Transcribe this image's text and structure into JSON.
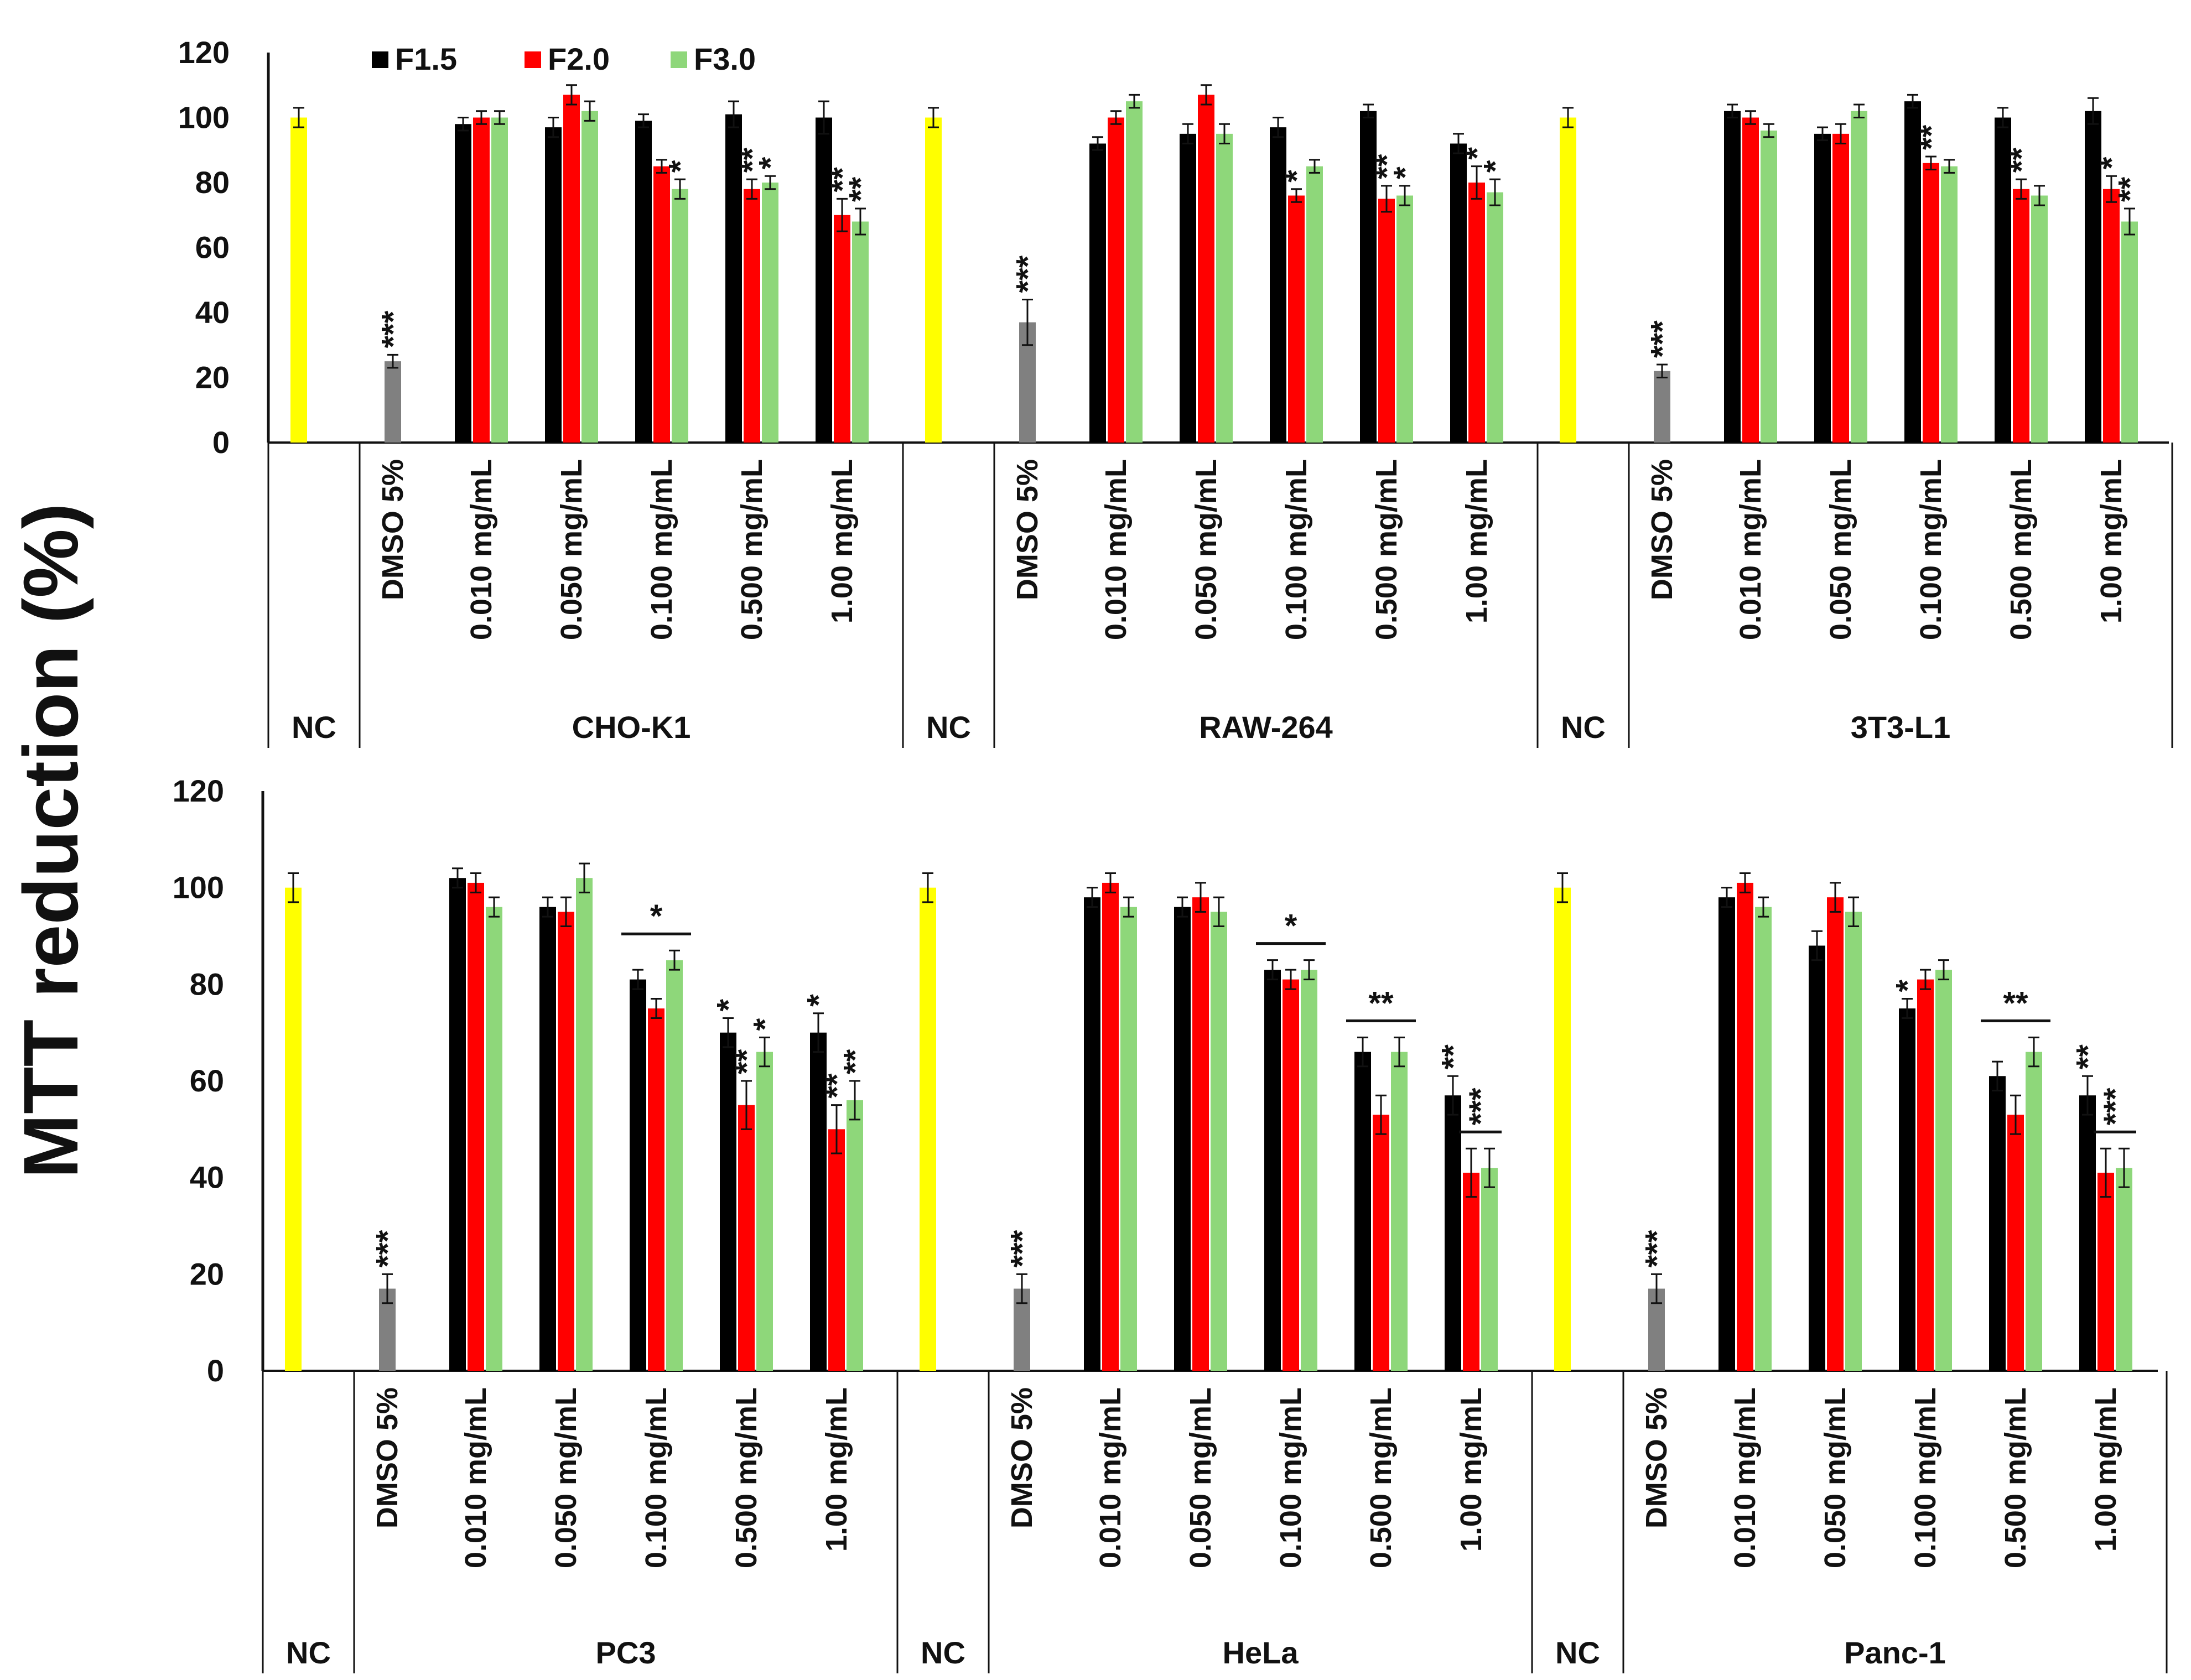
{
  "chart_data": {
    "type": "bar",
    "ylabel": "MTT reduction (%)",
    "ylim": [
      0,
      120
    ],
    "yticks": [
      "0",
      "20",
      "40",
      "60",
      "80",
      "100",
      "120"
    ],
    "grid": false,
    "legend_position": "top-left",
    "colors": {
      "F1.5": "#000000",
      "F2.0": "#ff0000",
      "F3.0": "#8ed77a",
      "NC": "#ffff00",
      "DMSO": "#808080"
    },
    "series_names": [
      "F1.5",
      "F2.0",
      "F3.0"
    ],
    "panels": [
      {
        "groups": [
          {
            "name": "CHO-K1",
            "nc_label": "NC",
            "nc": 100,
            "nc_err": 3,
            "dmso_label": "DMSO 5%",
            "dmso": 25,
            "dmso_err": 2,
            "dmso_star": "***",
            "concentrations": [
              {
                "label": "0.010 mg/mL",
                "values": [
                  98,
                  100,
                  100
                ],
                "errors": [
                  2,
                  2,
                  2
                ],
                "stars": [
                  "",
                  "",
                  ""
                ]
              },
              {
                "label": "0.050 mg/mL",
                "values": [
                  97,
                  107,
                  102
                ],
                "errors": [
                  3,
                  3,
                  3
                ],
                "stars": [
                  "",
                  "",
                  ""
                ]
              },
              {
                "label": "0.100 mg/mL",
                "values": [
                  99,
                  85,
                  78
                ],
                "errors": [
                  2,
                  2,
                  3
                ],
                "stars": [
                  "",
                  "",
                  "*"
                ]
              },
              {
                "label": "0.500 mg/mL",
                "values": [
                  101,
                  78,
                  80
                ],
                "errors": [
                  4,
                  3,
                  2
                ],
                "stars": [
                  "",
                  "**",
                  "*"
                ]
              },
              {
                "label": "1.00 mg/mL",
                "values": [
                  100,
                  70,
                  68
                ],
                "errors": [
                  5,
                  5,
                  4
                ],
                "stars": [
                  "",
                  "**",
                  "**"
                ]
              }
            ]
          },
          {
            "name": "RAW-264",
            "nc_label": "NC",
            "nc": 100,
            "nc_err": 3,
            "dmso_label": "DMSO 5%",
            "dmso": 37,
            "dmso_err": 7,
            "dmso_star": "***",
            "concentrations": [
              {
                "label": "0.010 mg/mL",
                "values": [
                  92,
                  100,
                  105
                ],
                "errors": [
                  2,
                  2,
                  2
                ],
                "stars": [
                  "",
                  "",
                  ""
                ]
              },
              {
                "label": "0.050 mg/mL",
                "values": [
                  95,
                  107,
                  95
                ],
                "errors": [
                  3,
                  3,
                  3
                ],
                "stars": [
                  "",
                  "",
                  ""
                ]
              },
              {
                "label": "0.100 mg/mL",
                "values": [
                  97,
                  76,
                  85
                ],
                "errors": [
                  3,
                  2,
                  2
                ],
                "stars": [
                  "",
                  "*",
                  ""
                ]
              },
              {
                "label": "0.500 mg/mL",
                "values": [
                  102,
                  75,
                  76
                ],
                "errors": [
                  2,
                  4,
                  3
                ],
                "stars": [
                  "",
                  "**",
                  "*"
                ]
              },
              {
                "label": "1.00 mg/mL",
                "values": [
                  92,
                  80,
                  77
                ],
                "errors": [
                  3,
                  5,
                  4
                ],
                "stars": [
                  "",
                  "*",
                  "*"
                ]
              }
            ]
          },
          {
            "name": "3T3-L1",
            "nc_label": "NC",
            "nc": 100,
            "nc_err": 3,
            "dmso_label": "DMSO 5%",
            "dmso": 22,
            "dmso_err": 2,
            "dmso_star": "***",
            "concentrations": [
              {
                "label": "0.010 mg/mL",
                "values": [
                  102,
                  100,
                  96
                ],
                "errors": [
                  2,
                  2,
                  2
                ],
                "stars": [
                  "",
                  "",
                  ""
                ]
              },
              {
                "label": "0.050 mg/mL",
                "values": [
                  95,
                  95,
                  102
                ],
                "errors": [
                  2,
                  3,
                  2
                ],
                "stars": [
                  "",
                  "",
                  ""
                ]
              },
              {
                "label": "0.100 mg/mL",
                "values": [
                  105,
                  86,
                  85
                ],
                "errors": [
                  2,
                  2,
                  2
                ],
                "stars": [
                  "",
                  "**",
                  ""
                ]
              },
              {
                "label": "0.500 mg/mL",
                "values": [
                  100,
                  78,
                  76
                ],
                "errors": [
                  3,
                  3,
                  3
                ],
                "stars": [
                  "",
                  "**",
                  ""
                ]
              },
              {
                "label": "1.00 mg/mL",
                "values": [
                  102,
                  78,
                  68
                ],
                "errors": [
                  4,
                  4,
                  4
                ],
                "stars": [
                  "",
                  "*",
                  "**"
                ]
              }
            ]
          }
        ]
      },
      {
        "groups": [
          {
            "name": "PC3",
            "nc_label": "NC",
            "nc": 100,
            "nc_err": 3,
            "dmso_label": "DMSO 5%",
            "dmso": 17,
            "dmso_err": 3,
            "dmso_star": "***",
            "concentrations": [
              {
                "label": "0.010 mg/mL",
                "values": [
                  102,
                  101,
                  96
                ],
                "errors": [
                  2,
                  2,
                  2
                ],
                "stars": [
                  "",
                  "",
                  ""
                ]
              },
              {
                "label": "0.050 mg/mL",
                "values": [
                  96,
                  95,
                  102
                ],
                "errors": [
                  2,
                  3,
                  3
                ],
                "stars": [
                  "",
                  "",
                  ""
                ]
              },
              {
                "label": "0.100 mg/mL",
                "values": [
                  81,
                  75,
                  85
                ],
                "errors": [
                  2,
                  2,
                  2
                ],
                "stars": [
                  "",
                  "",
                  ""
                ],
                "bracket": "*"
              },
              {
                "label": "0.500 mg/mL",
                "values": [
                  70,
                  55,
                  66
                ],
                "errors": [
                  3,
                  5,
                  3
                ],
                "stars": [
                  "*",
                  "**",
                  "*"
                ]
              },
              {
                "label": "1.00 mg/mL",
                "values": [
                  70,
                  50,
                  56
                ],
                "errors": [
                  4,
                  5,
                  4
                ],
                "stars": [
                  "*",
                  "**",
                  "**"
                ]
              }
            ]
          },
          {
            "name": "HeLa",
            "nc_label": "NC",
            "nc": 100,
            "nc_err": 3,
            "dmso_label": "DMSO 5%",
            "dmso": 17,
            "dmso_err": 3,
            "dmso_star": "***",
            "concentrations": [
              {
                "label": "0.010 mg/mL",
                "values": [
                  98,
                  101,
                  96
                ],
                "errors": [
                  2,
                  2,
                  2
                ],
                "stars": [
                  "",
                  "",
                  ""
                ]
              },
              {
                "label": "0.050 mg/mL",
                "values": [
                  96,
                  98,
                  95
                ],
                "errors": [
                  2,
                  3,
                  3
                ],
                "stars": [
                  "",
                  "",
                  ""
                ]
              },
              {
                "label": "0.100 mg/mL",
                "values": [
                  83,
                  81,
                  83
                ],
                "errors": [
                  2,
                  2,
                  2
                ],
                "stars": [
                  "",
                  "",
                  ""
                ],
                "bracket": "*"
              },
              {
                "label": "0.500 mg/mL",
                "values": [
                  66,
                  53,
                  66
                ],
                "errors": [
                  3,
                  4,
                  3
                ],
                "stars": [
                  "",
                  "",
                  ""
                ],
                "bracket": "**"
              },
              {
                "label": "1.00 mg/mL",
                "values": [
                  57,
                  41,
                  42
                ],
                "errors": [
                  4,
                  5,
                  4
                ],
                "stars": [
                  "**",
                  "",
                  ""
                ],
                "bracket_right": "***"
              }
            ]
          },
          {
            "name": "Panc-1",
            "nc_label": "NC",
            "nc": 100,
            "nc_err": 3,
            "dmso_label": "DMSO 5%",
            "dmso": 17,
            "dmso_err": 3,
            "dmso_star": "***",
            "concentrations": [
              {
                "label": "0.010 mg/mL",
                "values": [
                  98,
                  101,
                  96
                ],
                "errors": [
                  2,
                  2,
                  2
                ],
                "stars": [
                  "",
                  "",
                  ""
                ]
              },
              {
                "label": "0.050 mg/mL",
                "values": [
                  88,
                  98,
                  95
                ],
                "errors": [
                  3,
                  3,
                  3
                ],
                "stars": [
                  "",
                  "",
                  ""
                ]
              },
              {
                "label": "0.100 mg/mL",
                "values": [
                  75,
                  81,
                  83
                ],
                "errors": [
                  2,
                  2,
                  2
                ],
                "stars": [
                  "*",
                  "",
                  ""
                ]
              },
              {
                "label": "0.500 mg/mL",
                "values": [
                  61,
                  53,
                  66
                ],
                "errors": [
                  3,
                  4,
                  3
                ],
                "stars": [
                  "",
                  "",
                  ""
                ],
                "bracket": "**"
              },
              {
                "label": "1.00 mg/mL",
                "values": [
                  57,
                  41,
                  42
                ],
                "errors": [
                  4,
                  5,
                  4
                ],
                "stars": [
                  "**",
                  "",
                  ""
                ],
                "bracket_right": "***"
              }
            ]
          }
        ]
      }
    ]
  }
}
